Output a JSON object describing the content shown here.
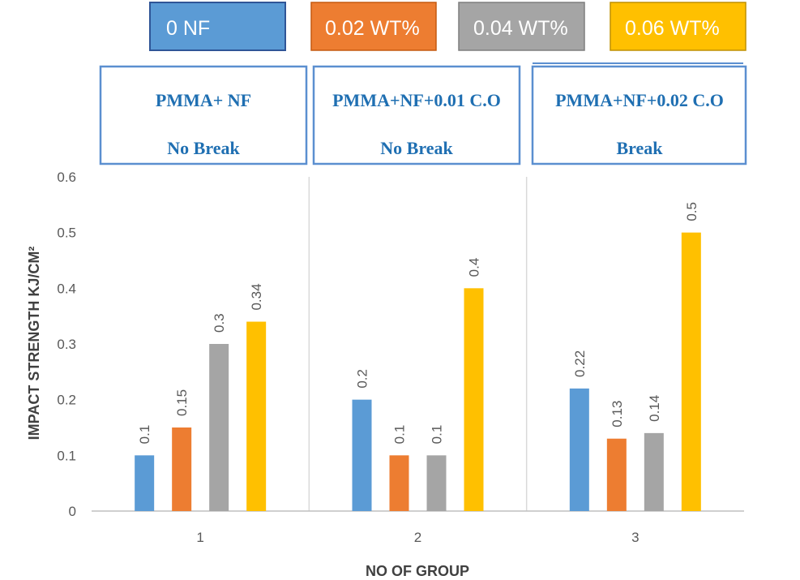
{
  "legend": [
    {
      "label": "0 NF",
      "color": "#5b9bd5"
    },
    {
      "label": "0.02 WT%",
      "color": "#ed7d31"
    },
    {
      "label": "0.04 WT%",
      "color": "#a5a5a5"
    },
    {
      "label": "0.06 WT%",
      "color": "#ffc000"
    }
  ],
  "group_boxes": [
    {
      "title": "PMMA+ NF",
      "status": "No Break"
    },
    {
      "title": "PMMA+NF+0.01 C.O",
      "status": "No Break"
    },
    {
      "title": "PMMA+NF+0.02 C.O",
      "status": "Break"
    }
  ],
  "chart_data": {
    "type": "bar",
    "categories": [
      "1",
      "2",
      "3"
    ],
    "series": [
      {
        "name": "0 NF",
        "color": "#5b9bd5",
        "values": [
          0.1,
          0.2,
          0.22
        ]
      },
      {
        "name": "0.02 WT%",
        "color": "#ed7d31",
        "values": [
          0.15,
          0.1,
          0.13
        ]
      },
      {
        "name": "0.04 WT%",
        "color": "#a5a5a5",
        "values": [
          0.3,
          0.1,
          0.14
        ]
      },
      {
        "name": "0.06 WT%",
        "color": "#ffc000",
        "values": [
          0.34,
          0.4,
          0.5
        ]
      }
    ],
    "xlabel": "NO OF GROUP",
    "ylabel": "IMPACT STRENGTH KJ/CM²",
    "ylim": [
      0,
      0.6
    ],
    "yticks": [
      "0",
      "0.1",
      "0.2",
      "0.3",
      "0.4",
      "0.5",
      "0.6"
    ],
    "grid": false,
    "legend_position": "top"
  }
}
